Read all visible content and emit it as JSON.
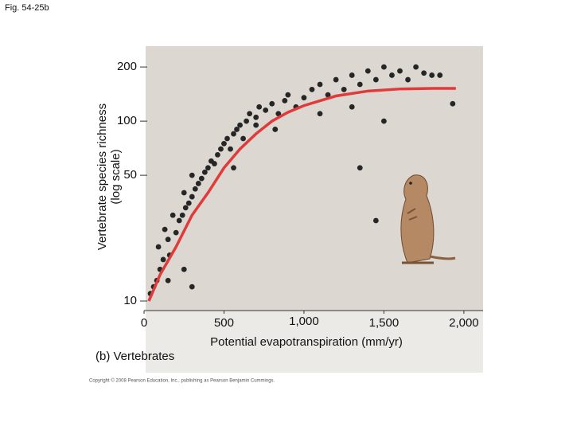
{
  "figure_label": "Fig. 54-25b",
  "chart_data": {
    "type": "scatter",
    "panel_label": "(b) Vertebrates",
    "x_label": "Potential evapotranspiration (mm/yr)",
    "y_label_lines": [
      "Vertebrate species richness",
      "(log scale)"
    ],
    "ylog": true,
    "xlim": [
      0,
      2120
    ],
    "ylim": [
      8.85,
      261
    ],
    "xticks": [
      0,
      {
        "value": 500,
        "label": "500"
      },
      {
        "value": 1000,
        "label": "1,000"
      },
      {
        "value": 1500,
        "label": "1,500"
      },
      {
        "value": 2000,
        "label": "2,000"
      }
    ],
    "yticks": [
      10,
      50,
      100,
      200
    ],
    "points": {
      "color": "#262626",
      "x": [
        40,
        60,
        80,
        100,
        120,
        90,
        150,
        130,
        160,
        200,
        220,
        180,
        240,
        260,
        280,
        300,
        250,
        320,
        340,
        360,
        300,
        380,
        400,
        420,
        440,
        460,
        480,
        500,
        520,
        540,
        560,
        580,
        600,
        620,
        640,
        660,
        700,
        720,
        760,
        800,
        840,
        880,
        900,
        950,
        1000,
        1050,
        1100,
        1150,
        1200,
        1250,
        1300,
        1350,
        1400,
        1450,
        1500,
        1550,
        1600,
        1650,
        1700,
        1750,
        1800,
        1850,
        1930,
        1350,
        1450,
        250,
        300,
        560,
        820,
        1100,
        1300,
        1500,
        700,
        150
      ],
      "values": [
        11,
        12,
        13,
        15,
        17,
        20,
        22,
        25,
        18,
        24,
        28,
        30,
        30,
        33,
        35,
        38,
        40,
        42,
        45,
        48,
        50,
        52,
        55,
        60,
        58,
        65,
        70,
        75,
        80,
        70,
        85,
        90,
        95,
        80,
        100,
        110,
        105,
        120,
        115,
        125,
        110,
        130,
        140,
        120,
        135,
        150,
        160,
        140,
        170,
        150,
        180,
        160,
        190,
        170,
        200,
        180,
        190,
        170,
        200,
        185,
        180,
        180,
        125,
        55,
        28,
        15,
        12,
        55,
        90,
        110,
        120,
        100,
        95,
        13
      ]
    },
    "curve": {
      "color": "#e03a3a",
      "x": [
        30,
        100,
        200,
        300,
        400,
        500,
        600,
        700,
        800,
        900,
        1000,
        1200,
        1400,
        1600,
        1800,
        1950
      ],
      "values": [
        10,
        14,
        20,
        30,
        40,
        55,
        70,
        85,
        100,
        112,
        122,
        138,
        147,
        151,
        152,
        152
      ]
    },
    "footer": "Copyright © 2008 Pearson Education, Inc., publishing as Pearson Benjamin Cummings."
  }
}
